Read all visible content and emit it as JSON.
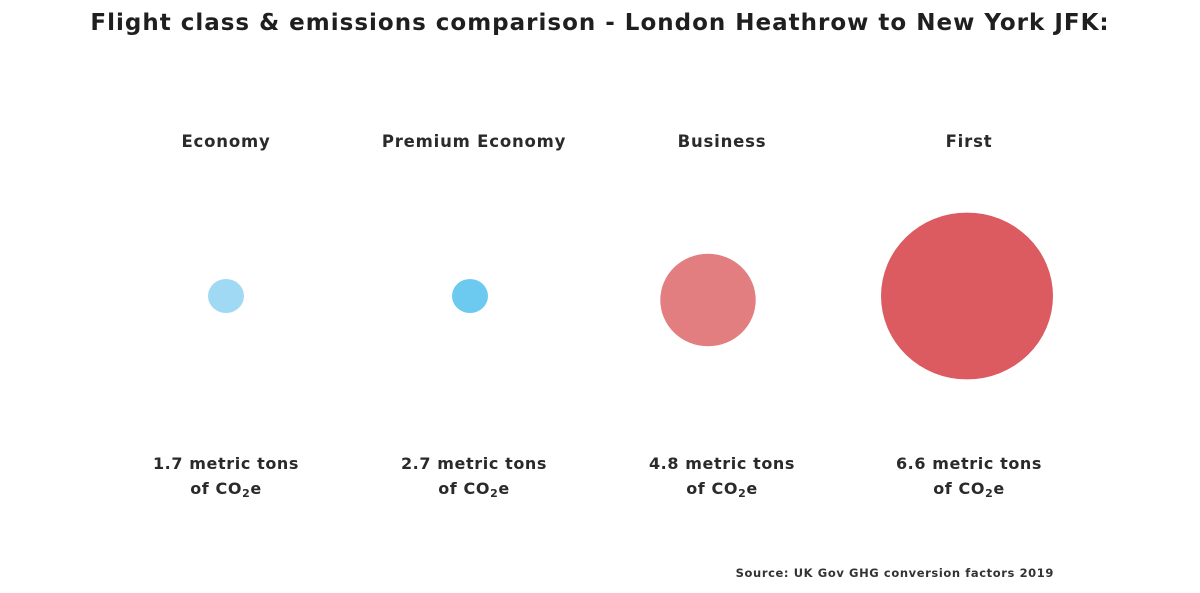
{
  "title": "Flight class & emissions comparison - London Heathrow to New York JFK:",
  "source": "Source: UK Gov GHG conversion factors 2019",
  "chart_data": {
    "type": "bubble",
    "title": "Flight class & emissions comparison - London Heathrow to New York JFK:",
    "unit_line1_suffix": "metric tons",
    "unit_line2": {
      "prefix": "of CO",
      "subscript": "2",
      "suffix": "e"
    },
    "categories": [
      "Economy",
      "Premium Economy",
      "Business",
      "First"
    ],
    "values": [
      1.7,
      2.7,
      4.8,
      6.6
    ],
    "value_labels": [
      "1.7",
      "2.7",
      "4.8",
      "6.6"
    ],
    "colors": [
      "#9fd9f4",
      "#6ccaf0",
      "#e27e80",
      "#db5b60"
    ],
    "source": "Source: UK Gov GHG conversion factors 2019"
  }
}
